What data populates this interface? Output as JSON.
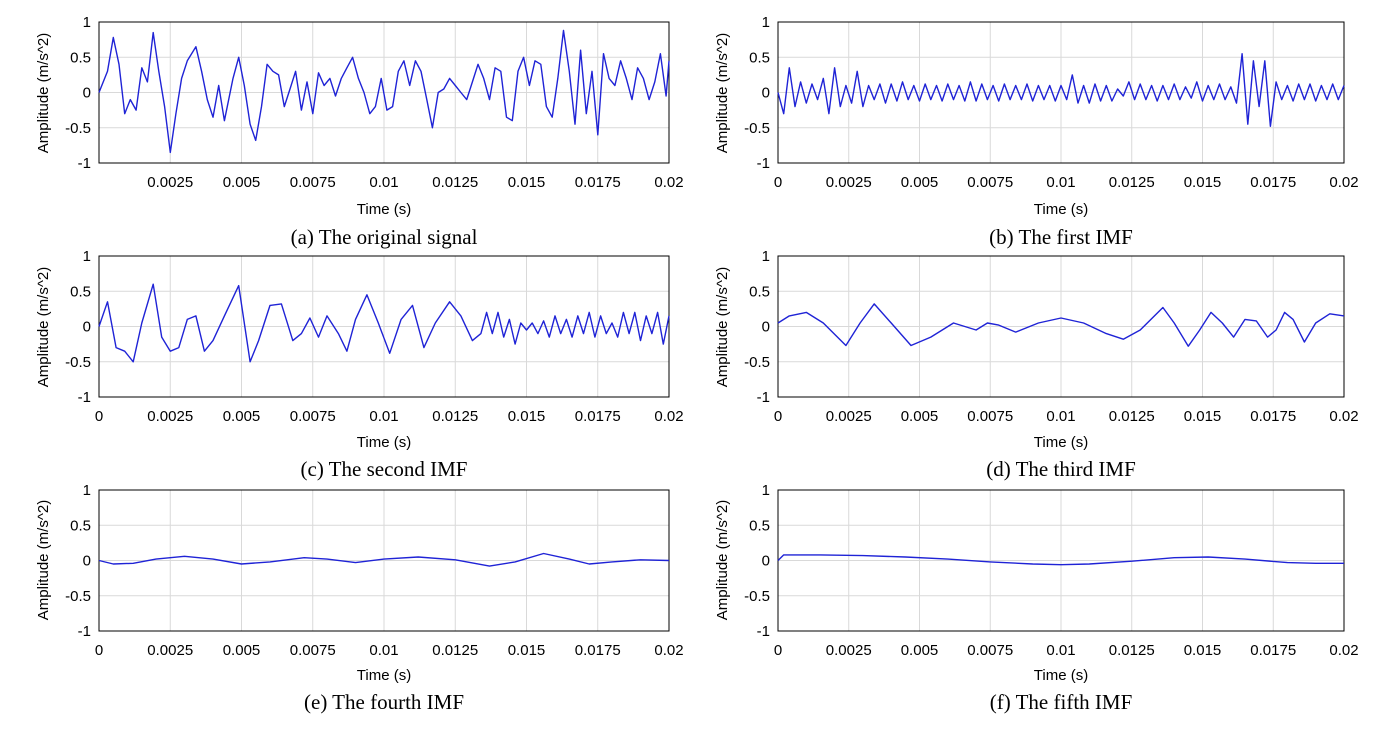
{
  "style": {
    "line_color": "#1f23d6",
    "grid_color": "#d9d9d9"
  },
  "chart_data": [
    {
      "type": "line",
      "caption": "(a) The original signal",
      "xlabel": "Time (s)",
      "ylabel": "Amplitude (m/s^2)",
      "xlim": [
        0,
        0.02
      ],
      "ylim": [
        -1,
        1
      ],
      "xticks": [
        "0.0025",
        "0.005",
        "0.0075",
        "0.01",
        "0.0125",
        "0.015",
        "0.0175",
        "0.02"
      ],
      "yticks": [
        "1",
        "0.5",
        "0",
        "-0.5",
        "-1"
      ],
      "grid": true,
      "series": [
        {
          "x": [
            0,
            0.0003,
            0.0005,
            0.0007,
            0.0009,
            0.0011,
            0.0013,
            0.0015,
            0.0017,
            0.0019,
            0.0021,
            0.0023,
            0.0025,
            0.0027,
            0.0029,
            0.0031,
            0.0034,
            0.0036,
            0.0038,
            0.004,
            0.0042,
            0.0044,
            0.0047,
            0.0049,
            0.0051,
            0.0053,
            0.0055,
            0.0057,
            0.0059,
            0.0061,
            0.0063,
            0.0065,
            0.0067,
            0.0069,
            0.0071,
            0.0073,
            0.0075,
            0.0077,
            0.0079,
            0.0081,
            0.0083,
            0.0085,
            0.0087,
            0.0089,
            0.0091,
            0.0093,
            0.0095,
            0.0097,
            0.0099,
            0.0101,
            0.0103,
            0.0105,
            0.0107,
            0.0109,
            0.0111,
            0.0113,
            0.0115,
            0.0117,
            0.0119,
            0.0121,
            0.0123,
            0.0125,
            0.0127,
            0.0129,
            0.0131,
            0.0133,
            0.0135,
            0.0137,
            0.0139,
            0.0141,
            0.0143,
            0.0145,
            0.0147,
            0.0149,
            0.0151,
            0.0153,
            0.0155,
            0.0157,
            0.0159,
            0.0161,
            0.0163,
            0.0165,
            0.0167,
            0.0169,
            0.0171,
            0.0173,
            0.0175,
            0.0177,
            0.0179,
            0.0181,
            0.0183,
            0.0185,
            0.0187,
            0.0189,
            0.0191,
            0.0193,
            0.0195,
            0.0197,
            0.0199,
            0.02
          ],
          "y": [
            0,
            0.3,
            0.78,
            0.4,
            -0.3,
            -0.1,
            -0.25,
            0.35,
            0.15,
            0.85,
            0.3,
            -0.2,
            -0.85,
            -0.3,
            0.2,
            0.45,
            0.65,
            0.3,
            -0.1,
            -0.35,
            0.1,
            -0.4,
            0.2,
            0.5,
            0.1,
            -0.45,
            -0.68,
            -0.2,
            0.4,
            0.3,
            0.25,
            -0.2,
            0.05,
            0.3,
            -0.25,
            0.15,
            -0.3,
            0.28,
            0.1,
            0.2,
            -0.05,
            0.2,
            0.35,
            0.5,
            0.2,
            0,
            -0.3,
            -0.2,
            0.2,
            -0.25,
            -0.2,
            0.3,
            0.45,
            0.1,
            0.45,
            0.3,
            -0.1,
            -0.5,
            0,
            0.05,
            0.2,
            0.1,
            0,
            -0.1,
            0.15,
            0.4,
            0.2,
            -0.1,
            0.35,
            0.3,
            -0.35,
            -0.4,
            0.3,
            0.5,
            0.1,
            0.45,
            0.4,
            -0.2,
            -0.35,
            0.2,
            0.88,
            0.3,
            -0.45,
            0.6,
            -0.3,
            0.3,
            -0.6,
            0.55,
            0.2,
            0.1,
            0.45,
            0.2,
            -0.1,
            0.35,
            0.2,
            -0.1,
            0.15,
            0.55,
            -0.05,
            0.45
          ]
        }
      ]
    },
    {
      "type": "line",
      "caption": "(b) The first IMF",
      "xlabel": "Time (s)",
      "ylabel": "Amplitude (m/s^2)",
      "xlim": [
        0,
        0.02
      ],
      "ylim": [
        -1,
        1
      ],
      "xticks": [
        "0",
        "0.0025",
        "0.005",
        "0.0075",
        "0.01",
        "0.0125",
        "0.015",
        "0.0175",
        "0.02"
      ],
      "yticks": [
        "1",
        "0.5",
        "0",
        "-0.5",
        "-1"
      ],
      "grid": true,
      "series": [
        {
          "x": [
            0,
            0.0002,
            0.0004,
            0.0006,
            0.0008,
            0.001,
            0.0012,
            0.0014,
            0.0016,
            0.0018,
            0.002,
            0.0022,
            0.0024,
            0.0026,
            0.0028,
            0.003,
            0.0032,
            0.0034,
            0.0036,
            0.0038,
            0.004,
            0.0042,
            0.0044,
            0.0046,
            0.0048,
            0.005,
            0.0052,
            0.0054,
            0.0056,
            0.0058,
            0.006,
            0.0062,
            0.0064,
            0.0066,
            0.0068,
            0.007,
            0.0072,
            0.0074,
            0.0076,
            0.0078,
            0.008,
            0.0082,
            0.0084,
            0.0086,
            0.0088,
            0.009,
            0.0092,
            0.0094,
            0.0096,
            0.0098,
            0.01,
            0.0102,
            0.0104,
            0.0106,
            0.0108,
            0.011,
            0.0112,
            0.0114,
            0.0116,
            0.0118,
            0.012,
            0.0122,
            0.0124,
            0.0126,
            0.0128,
            0.013,
            0.0132,
            0.0134,
            0.0136,
            0.0138,
            0.014,
            0.0142,
            0.0144,
            0.0146,
            0.0148,
            0.015,
            0.0152,
            0.0154,
            0.0156,
            0.0158,
            0.016,
            0.0162,
            0.0164,
            0.0166,
            0.0168,
            0.017,
            0.0172,
            0.0174,
            0.0176,
            0.0178,
            0.018,
            0.0182,
            0.0184,
            0.0186,
            0.0188,
            0.019,
            0.0192,
            0.0194,
            0.0196,
            0.0198,
            0.02
          ],
          "y": [
            0,
            -0.3,
            0.35,
            -0.2,
            0.15,
            -0.15,
            0.12,
            -0.1,
            0.2,
            -0.3,
            0.35,
            -0.2,
            0.1,
            -0.15,
            0.3,
            -0.2,
            0.1,
            -0.1,
            0.12,
            -0.15,
            0.12,
            -0.12,
            0.15,
            -0.1,
            0.1,
            -0.12,
            0.12,
            -0.1,
            0.1,
            -0.12,
            0.12,
            -0.1,
            0.1,
            -0.12,
            0.15,
            -0.12,
            0.12,
            -0.1,
            0.1,
            -0.12,
            0.12,
            -0.1,
            0.1,
            -0.1,
            0.12,
            -0.12,
            0.1,
            -0.1,
            0.1,
            -0.12,
            0.1,
            -0.1,
            0.25,
            -0.15,
            0.1,
            -0.15,
            0.12,
            -0.12,
            0.1,
            -0.12,
            0.05,
            -0.05,
            0.15,
            -0.1,
            0.12,
            -0.1,
            0.1,
            -0.12,
            0.1,
            -0.1,
            0.12,
            -0.1,
            0.08,
            -0.08,
            0.15,
            -0.12,
            0.1,
            -0.1,
            0.12,
            -0.1,
            0.08,
            -0.15,
            0.55,
            -0.45,
            0.45,
            -0.2,
            0.45,
            -0.48,
            0.15,
            -0.1,
            0.1,
            -0.12,
            0.12,
            -0.1,
            0.12,
            -0.12,
            0.1,
            -0.1,
            0.12,
            -0.1,
            0.1
          ]
        }
      ]
    },
    {
      "type": "line",
      "caption": "(c) The second IMF",
      "xlabel": "Time (s)",
      "ylabel": "Amplitude (m/s^2)",
      "xlim": [
        0,
        0.02
      ],
      "ylim": [
        -1,
        1
      ],
      "xticks": [
        "0",
        "0.0025",
        "0.005",
        "0.0075",
        "0.01",
        "0.0125",
        "0.015",
        "0.0175",
        "0.02"
      ],
      "yticks": [
        "1",
        "0.5",
        "0",
        "-0.5",
        "-1"
      ],
      "grid": true,
      "series": [
        {
          "x": [
            0,
            0.0003,
            0.0006,
            0.0009,
            0.0012,
            0.0015,
            0.0019,
            0.0022,
            0.0025,
            0.0028,
            0.0031,
            0.0034,
            0.0037,
            0.004,
            0.0044,
            0.0049,
            0.0053,
            0.0056,
            0.006,
            0.0064,
            0.0068,
            0.0071,
            0.0074,
            0.0077,
            0.008,
            0.0084,
            0.0087,
            0.009,
            0.0094,
            0.0098,
            0.0102,
            0.0106,
            0.011,
            0.0114,
            0.0118,
            0.0123,
            0.0127,
            0.0131,
            0.0134,
            0.0136,
            0.0138,
            0.014,
            0.0142,
            0.0144,
            0.0146,
            0.0148,
            0.015,
            0.0152,
            0.0154,
            0.0156,
            0.0158,
            0.016,
            0.0162,
            0.0164,
            0.0166,
            0.0168,
            0.017,
            0.0172,
            0.0174,
            0.0176,
            0.0178,
            0.018,
            0.0182,
            0.0184,
            0.0186,
            0.0188,
            0.019,
            0.0192,
            0.0194,
            0.0196,
            0.0198,
            0.02
          ],
          "y": [
            0,
            0.35,
            -0.3,
            -0.35,
            -0.5,
            0.05,
            0.6,
            -0.15,
            -0.35,
            -0.3,
            0.1,
            0.15,
            -0.35,
            -0.2,
            0.15,
            0.58,
            -0.5,
            -0.2,
            0.3,
            0.32,
            -0.2,
            -0.1,
            0.12,
            -0.15,
            0.15,
            -0.1,
            -0.35,
            0.1,
            0.45,
            0.05,
            -0.38,
            0.1,
            0.3,
            -0.3,
            0.05,
            0.35,
            0.15,
            -0.2,
            -0.1,
            0.2,
            -0.1,
            0.2,
            -0.15,
            0.1,
            -0.25,
            0.05,
            -0.05,
            0.05,
            -0.1,
            0.08,
            -0.15,
            0.15,
            -0.1,
            0.1,
            -0.15,
            0.15,
            -0.1,
            0.2,
            -0.15,
            0.15,
            -0.1,
            0.05,
            -0.15,
            0.2,
            -0.1,
            0.2,
            -0.2,
            0.15,
            -0.1,
            0.2,
            -0.25,
            0.15
          ]
        }
      ]
    },
    {
      "type": "line",
      "caption": "(d) The third IMF",
      "xlabel": "Time (s)",
      "ylabel": "Amplitude (m/s^2)",
      "xlim": [
        0,
        0.02
      ],
      "ylim": [
        -1,
        1
      ],
      "xticks": [
        "0",
        "0.0025",
        "0.005",
        "0.0075",
        "0.01",
        "0.0125",
        "0.015",
        "0.0175",
        "0.02"
      ],
      "yticks": [
        "1",
        "0.5",
        "0",
        "-0.5",
        "-1"
      ],
      "grid": true,
      "series": [
        {
          "x": [
            0,
            0.0004,
            0.001,
            0.0016,
            0.0024,
            0.0029,
            0.0034,
            0.004,
            0.0047,
            0.0054,
            0.0062,
            0.007,
            0.0074,
            0.0078,
            0.0084,
            0.0092,
            0.01,
            0.0108,
            0.0116,
            0.0122,
            0.0128,
            0.0136,
            0.014,
            0.0145,
            0.0149,
            0.0153,
            0.0157,
            0.0161,
            0.0165,
            0.0169,
            0.0173,
            0.0176,
            0.0179,
            0.0182,
            0.0186,
            0.019,
            0.0195,
            0.02
          ],
          "y": [
            0.05,
            0.15,
            0.2,
            0.05,
            -0.27,
            0.05,
            0.32,
            0.05,
            -0.27,
            -0.15,
            0.05,
            -0.05,
            0.05,
            0.02,
            -0.08,
            0.05,
            0.12,
            0.05,
            -0.1,
            -0.18,
            -0.05,
            0.27,
            0.05,
            -0.28,
            -0.05,
            0.2,
            0.05,
            -0.15,
            0.1,
            0.08,
            -0.15,
            -0.05,
            0.2,
            0.1,
            -0.22,
            0.05,
            0.18,
            0.15
          ]
        }
      ]
    },
    {
      "type": "line",
      "caption": "(e) The fourth IMF",
      "xlabel": "Time (s)",
      "ylabel": "Amplitude (m/s^2)",
      "xlim": [
        0,
        0.02
      ],
      "ylim": [
        -1,
        1
      ],
      "xticks": [
        "0",
        "0.0025",
        "0.005",
        "0.0075",
        "0.01",
        "0.0125",
        "0.015",
        "0.0175",
        "0.02"
      ],
      "yticks": [
        "1",
        "0.5",
        "0",
        "-0.5",
        "-1"
      ],
      "grid": true,
      "series": [
        {
          "x": [
            0,
            0.0005,
            0.0012,
            0.002,
            0.003,
            0.004,
            0.005,
            0.006,
            0.0072,
            0.008,
            0.009,
            0.01,
            0.0112,
            0.0125,
            0.0137,
            0.0146,
            0.0156,
            0.0165,
            0.0172,
            0.018,
            0.019,
            0.02
          ],
          "y": [
            0,
            -0.05,
            -0.04,
            0.02,
            0.06,
            0.02,
            -0.05,
            -0.02,
            0.04,
            0.02,
            -0.03,
            0.02,
            0.05,
            0.01,
            -0.08,
            -0.02,
            0.1,
            0.02,
            -0.05,
            -0.02,
            0.01,
            0
          ]
        }
      ]
    },
    {
      "type": "line",
      "caption": "(f) The fifth IMF",
      "xlabel": "Time (s)",
      "ylabel": "Amplitude (m/s^2)",
      "xlim": [
        0,
        0.02
      ],
      "ylim": [
        -1,
        1
      ],
      "xticks": [
        "0",
        "0.0025",
        "0.005",
        "0.0075",
        "0.01",
        "0.0125",
        "0.015",
        "0.0175",
        "0.02"
      ],
      "yticks": [
        "1",
        "0.5",
        "0",
        "-0.5",
        "-1"
      ],
      "grid": true,
      "series": [
        {
          "x": [
            0,
            0.0002,
            0.0006,
            0.0015,
            0.003,
            0.0045,
            0.006,
            0.0075,
            0.009,
            0.01,
            0.011,
            0.0125,
            0.014,
            0.0152,
            0.0165,
            0.018,
            0.019,
            0.02
          ],
          "y": [
            0,
            0.08,
            0.08,
            0.08,
            0.07,
            0.05,
            0.02,
            -0.02,
            -0.05,
            -0.06,
            -0.05,
            -0.01,
            0.04,
            0.05,
            0.02,
            -0.03,
            -0.04,
            -0.04
          ]
        }
      ]
    }
  ]
}
